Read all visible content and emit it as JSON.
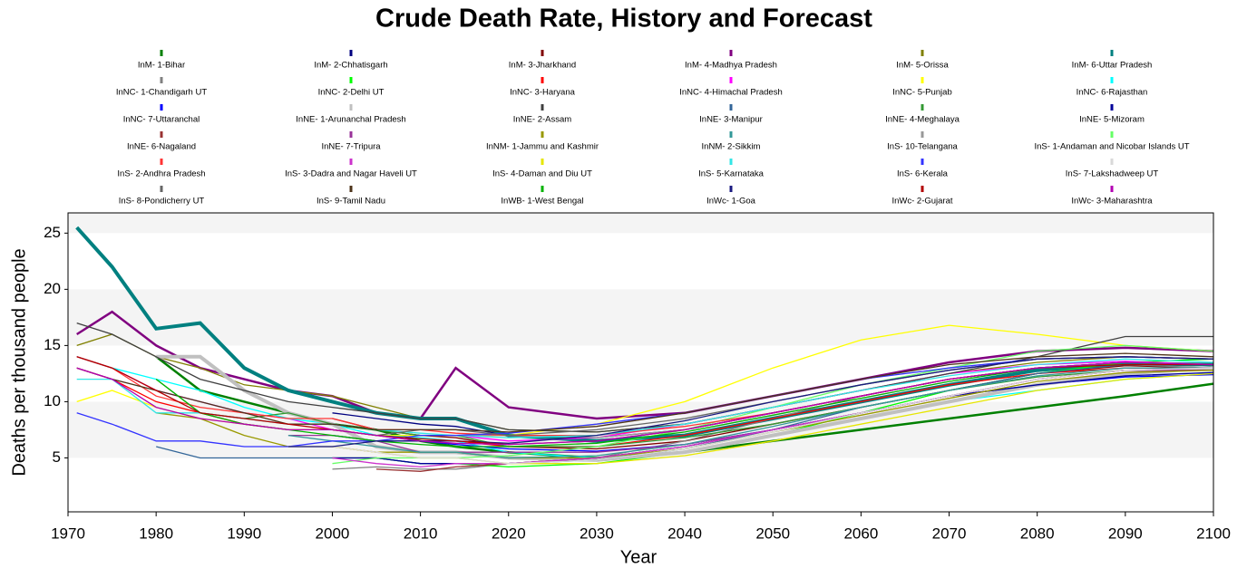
{
  "chart_data": {
    "type": "line",
    "title": "Crude Death Rate, History and Forecast",
    "x_label": "Year",
    "y_label": "Deaths per thousand people",
    "xlim": [
      1970,
      2100
    ],
    "ylim": [
      0.2,
      26.8
    ],
    "xticks": [
      1970,
      1980,
      1990,
      2000,
      2010,
      2020,
      2030,
      2040,
      2050,
      2060,
      2070,
      2080,
      2090,
      2100
    ],
    "yticks": [
      5,
      10,
      15,
      20,
      25
    ],
    "grid": true,
    "legend": "top",
    "x": [
      1971,
      1975,
      1980,
      1985,
      1990,
      1995,
      2000,
      2005,
      2010,
      2014,
      2020,
      2030,
      2040,
      2050,
      2060,
      2070,
      2080,
      2090,
      2100
    ],
    "series": [
      {
        "name": "InM- 1-Bihar",
        "color": "#008000",
        "values": [
          null,
          null,
          14,
          11,
          10,
          9,
          8,
          7.5,
          6.5,
          6,
          5.5,
          5,
          5.5,
          6.5,
          7.5,
          8.5,
          9.5,
          10.5,
          11.6
        ]
      },
      {
        "name": "InM- 2-Chhatisgarh",
        "color": "#000080",
        "values": [
          null,
          null,
          null,
          null,
          null,
          null,
          9,
          8.5,
          8,
          7.8,
          7,
          6.8,
          7.5,
          9,
          10.5,
          12,
          13,
          13.5,
          13.2
        ]
      },
      {
        "name": "InM- 3-Jharkhand",
        "color": "#800000",
        "values": [
          null,
          null,
          null,
          null,
          null,
          null,
          8.5,
          7.5,
          7,
          6.8,
          6,
          5.8,
          6.5,
          8,
          9.5,
          11,
          12.5,
          13.2,
          13
        ]
      },
      {
        "name": "InM- 4-Madhya Pradesh",
        "color": "#800080",
        "values": [
          16,
          18,
          15,
          13,
          12,
          11,
          10.5,
          9,
          8.5,
          13,
          9.5,
          8.5,
          9,
          10.5,
          12,
          13.5,
          14.5,
          14.8,
          14.5
        ]
      },
      {
        "name": "InM- 5-Orissa",
        "color": "#808000",
        "values": [
          15,
          16,
          14,
          13,
          11.5,
          11,
          10.5,
          9.5,
          8.5,
          8.5,
          7.5,
          7.3,
          8,
          9.5,
          11,
          12.5,
          13.5,
          14,
          13.8
        ]
      },
      {
        "name": "InM- 6-Uttar Pradesh",
        "color": "#008080",
        "values": [
          25.5,
          22,
          16.5,
          17,
          13,
          11,
          10,
          9,
          8.5,
          8.5,
          7,
          6.5,
          7,
          8.5,
          10,
          11.5,
          12.8,
          13.4,
          13.3
        ]
      },
      {
        "name": "InNC- 1-Chandigarh UT",
        "color": "#808080",
        "values": [
          null,
          null,
          null,
          null,
          null,
          null,
          4,
          4.2,
          4,
          4,
          4.5,
          5,
          6.5,
          8.5,
          10.5,
          12,
          13,
          13.3,
          13
        ]
      },
      {
        "name": "InNC- 2-Delhi UT",
        "color": "#00ff00",
        "values": [
          null,
          null,
          null,
          null,
          null,
          null,
          5,
          5,
          4.5,
          4.5,
          4.2,
          4.5,
          5.5,
          7,
          9,
          11,
          12.5,
          13.5,
          13.8
        ]
      },
      {
        "name": "InNC- 3-Haryana",
        "color": "#ff0000",
        "values": [
          13,
          12,
          10,
          9,
          8,
          7.5,
          7.5,
          7,
          6.5,
          6.5,
          6,
          6,
          7,
          8.5,
          10,
          11.5,
          12.5,
          13,
          13
        ]
      },
      {
        "name": "InNC- 4-Himachal Pradesh",
        "color": "#ff00ff",
        "values": [
          14,
          13,
          11,
          10,
          9,
          8.5,
          7.5,
          7,
          7,
          7,
          6.5,
          6.8,
          8,
          9.5,
          11,
          12.5,
          13.3,
          13.6,
          13.3
        ]
      },
      {
        "name": "InNC- 5-Punjab",
        "color": "#ffff00",
        "values": [
          10,
          11,
          9.5,
          8.5,
          8,
          7.5,
          7.5,
          7,
          7,
          7,
          7,
          8,
          10,
          13,
          15.5,
          16.8,
          16,
          15,
          14.5
        ]
      },
      {
        "name": "InNC- 6-Rajasthan",
        "color": "#00ffff",
        "values": [
          14,
          13,
          12,
          11,
          9.5,
          8.5,
          8,
          7,
          6.8,
          6.5,
          5.5,
          5,
          5.5,
          7,
          8.5,
          10,
          11,
          12,
          12.5
        ]
      },
      {
        "name": "InNC- 7-Uttaranchal",
        "color": "#0000ff",
        "values": [
          null,
          null,
          null,
          null,
          null,
          null,
          7,
          6.5,
          6.5,
          6.2,
          5.8,
          5.6,
          6.2,
          7.5,
          9,
          10.5,
          11.5,
          12.2,
          12.4
        ]
      },
      {
        "name": "InNE- 1-Arunanchal Pradesh",
        "color": "#c0c0c0",
        "values": [
          null,
          null,
          14,
          14,
          11,
          9,
          8,
          6,
          5.5,
          5.5,
          5,
          4.8,
          5.5,
          7,
          8.5,
          10,
          11.5,
          12.5,
          13
        ]
      },
      {
        "name": "InNE- 2-Assam",
        "color": "#404040",
        "values": [
          17,
          16,
          14,
          12,
          11,
          10,
          9.5,
          9,
          8.5,
          8.5,
          7.5,
          7.3,
          8,
          9.5,
          11,
          12.5,
          14,
          15.8,
          15.8
        ]
      },
      {
        "name": "InNE- 3-Manipur",
        "color": "#336699",
        "values": [
          null,
          null,
          6,
          5,
          5,
          5,
          5,
          5,
          4.5,
          4.5,
          4.5,
          4.8,
          5.8,
          7.5,
          9.5,
          11,
          12.5,
          13.3,
          13.3
        ]
      },
      {
        "name": "InNE- 4-Meghalaya",
        "color": "#339933",
        "values": [
          null,
          null,
          12,
          9,
          8.5,
          9,
          8,
          7.5,
          7,
          7,
          6,
          6,
          6.8,
          8,
          9.5,
          11,
          12.2,
          12.8,
          12.8
        ]
      },
      {
        "name": "InNE- 5-Mizoram",
        "color": "#000099",
        "values": [
          null,
          null,
          null,
          null,
          null,
          null,
          5,
          5,
          4.5,
          4.5,
          4.5,
          5,
          6,
          7.5,
          9,
          10.5,
          11.5,
          12.3,
          12.6
        ]
      },
      {
        "name": "InNE- 6-Nagaland",
        "color": "#993333",
        "values": [
          null,
          null,
          null,
          null,
          null,
          null,
          null,
          4,
          3.8,
          4.2,
          4.5,
          5,
          6,
          7.5,
          9,
          10.5,
          12,
          12.8,
          12.8
        ]
      },
      {
        "name": "InNE- 7-Tripura",
        "color": "#993399",
        "values": [
          null,
          null,
          null,
          null,
          null,
          7,
          7,
          6.5,
          5.5,
          5.5,
          5.5,
          5.5,
          6.2,
          7.5,
          9,
          10.5,
          12,
          12.8,
          12.8
        ]
      },
      {
        "name": "InNM- 1-Jammu and Kashmir",
        "color": "#999900",
        "values": [
          null,
          null,
          9,
          8.5,
          7,
          6,
          6,
          5.5,
          5.5,
          5.5,
          5,
          5,
          5.8,
          7.3,
          8.8,
          10.3,
          11.8,
          12.6,
          12.8
        ]
      },
      {
        "name": "InNM- 2-Sikkim",
        "color": "#339999",
        "values": [
          null,
          null,
          null,
          null,
          null,
          7,
          6.5,
          6,
          5.5,
          5.5,
          5,
          5.2,
          6.2,
          7.8,
          9.5,
          11,
          12.3,
          13,
          13
        ]
      },
      {
        "name": "InS- 10-Telangana",
        "color": "#999999",
        "values": [
          null,
          null,
          null,
          null,
          null,
          null,
          null,
          null,
          null,
          7,
          7,
          6.8,
          7.5,
          9,
          10.5,
          12,
          13,
          13.5,
          13.3
        ]
      },
      {
        "name": "InS- 1-Andaman and Nicobar Islands UT",
        "color": "#66ff66",
        "values": [
          null,
          null,
          null,
          null,
          null,
          null,
          4.5,
          5,
          5,
          5,
          5.2,
          6,
          7.5,
          9.5,
          11.5,
          13,
          14.5,
          15,
          14.5
        ]
      },
      {
        "name": "InS- 2-Andhra Pradesh",
        "color": "#ff3333",
        "values": [
          14,
          13,
          10.5,
          9.5,
          9,
          8.5,
          8.5,
          7.5,
          7.5,
          7.2,
          7,
          7,
          7.8,
          9,
          10.5,
          12,
          13,
          13.5,
          13.3
        ]
      },
      {
        "name": "InS- 3-Dadra and Nagar Haveli UT",
        "color": "#cc33cc",
        "values": [
          null,
          null,
          null,
          null,
          null,
          null,
          5,
          4.5,
          4.2,
          4.5,
          4.5,
          5,
          6,
          7.5,
          9,
          10.5,
          12,
          12.8,
          13
        ]
      },
      {
        "name": "InS- 4-Daman and Diu UT",
        "color": "#e6e600",
        "values": [
          null,
          null,
          null,
          null,
          null,
          null,
          6,
          5.5,
          5,
          5,
          4.5,
          4.5,
          5.2,
          6.5,
          8,
          9.5,
          11,
          12,
          12.5
        ]
      },
      {
        "name": "InS- 5-Karnataka",
        "color": "#33e6e6",
        "values": [
          12,
          12,
          9,
          9,
          8.5,
          8,
          8,
          7.5,
          7.2,
          7,
          6.8,
          7,
          8,
          9.5,
          11,
          12.3,
          13.3,
          13.8,
          13.5
        ]
      },
      {
        "name": "InS- 6-Kerala",
        "color": "#3333ff",
        "values": [
          9,
          8,
          6.5,
          6.5,
          6,
          6,
          6.5,
          6.5,
          7,
          7,
          7.2,
          8,
          9,
          10.5,
          12,
          13,
          13.8,
          14,
          13.8
        ]
      },
      {
        "name": "InS- 7-Lakshadweep UT",
        "color": "#d9d9d9",
        "values": [
          null,
          null,
          null,
          null,
          null,
          6,
          6,
          5.5,
          5,
          5,
          4.5,
          4.8,
          5.8,
          7.3,
          9,
          10.5,
          12,
          12.8,
          13
        ]
      },
      {
        "name": "InS- 8-Pondicherry UT",
        "color": "#666666",
        "values": [
          null,
          null,
          null,
          null,
          null,
          null,
          7.5,
          7,
          7.5,
          7.5,
          7,
          7.5,
          8.5,
          10,
          11.5,
          12.8,
          13.8,
          14,
          13.8
        ]
      },
      {
        "name": "InS- 9-Tamil Nadu",
        "color": "#4d3319",
        "values": [
          13,
          12,
          11,
          10,
          9,
          8,
          8,
          7.5,
          7.5,
          7.5,
          7.3,
          7.8,
          9,
          10.5,
          12,
          13.3,
          14,
          14.3,
          14
        ]
      },
      {
        "name": "InWB- 1-West Bengal",
        "color": "#00b300",
        "values": [
          null,
          null,
          12,
          9,
          8,
          7.5,
          7,
          6.5,
          6.2,
          6,
          6,
          6.3,
          7.3,
          8.8,
          10.3,
          11.8,
          13,
          13.5,
          13.3
        ]
      },
      {
        "name": "InWc- 1-Goa",
        "color": "#1a1a80",
        "values": [
          null,
          null,
          null,
          null,
          null,
          6,
          6,
          6.5,
          6.5,
          6.5,
          6.3,
          7,
          8.3,
          10,
          11.5,
          12.8,
          13.8,
          14,
          13.8
        ]
      },
      {
        "name": "InWc- 2-Gujarat",
        "color": "#b30000",
        "values": [
          14,
          13,
          11,
          9,
          8.5,
          8,
          7.5,
          7,
          6.7,
          6.5,
          6.2,
          6.5,
          7.5,
          9,
          10.5,
          12,
          13,
          13.3,
          13.3
        ]
      },
      {
        "name": "InWc- 3-Maharashtra",
        "color": "#b300b3",
        "values": [
          13,
          12,
          9.5,
          8.5,
          8,
          7.5,
          7.5,
          7,
          6.5,
          6.3,
          6.2,
          6.5,
          7.5,
          9,
          10.5,
          12,
          13,
          13.5,
          13.3
        ]
      }
    ]
  }
}
